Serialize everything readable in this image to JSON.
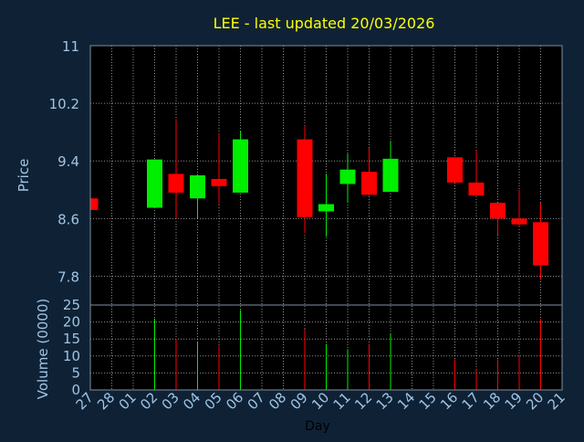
{
  "chart_data": [
    {
      "type": "candlestick",
      "title": "LEE - last updated 20/03/2026",
      "ylabel": "Price",
      "ylim": [
        7.4,
        11
      ],
      "yticks": [
        "7.8",
        "8.6",
        "9.4",
        "10.2",
        "11"
      ],
      "ytick_values": [
        7.8,
        8.6,
        9.4,
        10.2,
        11
      ],
      "grid": true,
      "colors": {
        "up": "#00ee00",
        "down": "#ff0000",
        "grid": "#ffffff",
        "text": "#a0c4e4",
        "title": "#ffff00"
      },
      "candles": [
        {
          "day": "27",
          "open": 8.88,
          "high": 8.88,
          "low": 8.72,
          "close": 8.72
        },
        {
          "day": "02",
          "open": 8.75,
          "high": 9.42,
          "low": 8.75,
          "close": 9.42
        },
        {
          "day": "03",
          "open": 9.22,
          "high": 9.98,
          "low": 8.6,
          "close": 8.96
        },
        {
          "day": "04",
          "open": 8.88,
          "high": 9.2,
          "low": 8.6,
          "close": 9.2
        },
        {
          "day": "05",
          "open": 9.15,
          "high": 9.79,
          "low": 8.8,
          "close": 9.05
        },
        {
          "day": "06",
          "open": 8.96,
          "high": 9.82,
          "low": 8.96,
          "close": 9.7
        },
        {
          "day": "09",
          "open": 9.7,
          "high": 9.88,
          "low": 8.4,
          "close": 8.62
        },
        {
          "day": "10",
          "open": 8.7,
          "high": 9.22,
          "low": 8.35,
          "close": 8.8
        },
        {
          "day": "11",
          "open": 9.08,
          "high": 9.5,
          "low": 8.82,
          "close": 9.28
        },
        {
          "day": "12",
          "open": 9.25,
          "high": 9.58,
          "low": 8.92,
          "close": 8.93
        },
        {
          "day": "13",
          "open": 8.97,
          "high": 9.68,
          "low": 8.97,
          "close": 9.43
        },
        {
          "day": "16",
          "open": 9.45,
          "high": 9.45,
          "low": 9.1,
          "close": 9.1
        },
        {
          "day": "17",
          "open": 9.1,
          "high": 9.55,
          "low": 8.92,
          "close": 8.92
        },
        {
          "day": "18",
          "open": 8.82,
          "high": 8.82,
          "low": 8.38,
          "close": 8.6
        },
        {
          "day": "19",
          "open": 8.6,
          "high": 9.0,
          "low": 8.48,
          "close": 8.52
        },
        {
          "day": "20",
          "open": 8.55,
          "high": 8.82,
          "low": 7.75,
          "close": 7.95
        }
      ]
    },
    {
      "type": "bar",
      "ylabel": "Volume (0000)",
      "xlabel": "Day",
      "ylim": [
        0,
        25
      ],
      "yticks": [
        "0",
        "5",
        "10",
        "15",
        "20",
        "25"
      ],
      "ytick_values": [
        0,
        5,
        10,
        15,
        20,
        25
      ],
      "categories": [
        "27",
        "28",
        "01",
        "02",
        "03",
        "04",
        "05",
        "06",
        "07",
        "08",
        "09",
        "10",
        "11",
        "12",
        "13",
        "14",
        "15",
        "16",
        "17",
        "18",
        "19",
        "20",
        "21"
      ],
      "bars": [
        {
          "day": "02",
          "value": 21,
          "color": "#00ee00"
        },
        {
          "day": "03",
          "value": 15,
          "color": "#ff0000"
        },
        {
          "day": "04",
          "value": 14,
          "color": "#00ee00"
        },
        {
          "day": "05",
          "value": 13,
          "color": "#ff0000"
        },
        {
          "day": "06",
          "value": 23.5,
          "color": "#00ee00"
        },
        {
          "day": "09",
          "value": 18,
          "color": "#ff0000"
        },
        {
          "day": "10",
          "value": 13.5,
          "color": "#00ee00"
        },
        {
          "day": "11",
          "value": 12,
          "color": "#00ee00"
        },
        {
          "day": "12",
          "value": 13.5,
          "color": "#ff0000"
        },
        {
          "day": "13",
          "value": 16.5,
          "color": "#00ee00"
        },
        {
          "day": "16",
          "value": 9,
          "color": "#ff0000"
        },
        {
          "day": "17",
          "value": 6,
          "color": "#ff0000"
        },
        {
          "day": "18",
          "value": 9,
          "color": "#ff0000"
        },
        {
          "day": "19",
          "value": 10,
          "color": "#ff0000"
        },
        {
          "day": "20",
          "value": 21,
          "color": "#ff0000"
        }
      ]
    }
  ]
}
